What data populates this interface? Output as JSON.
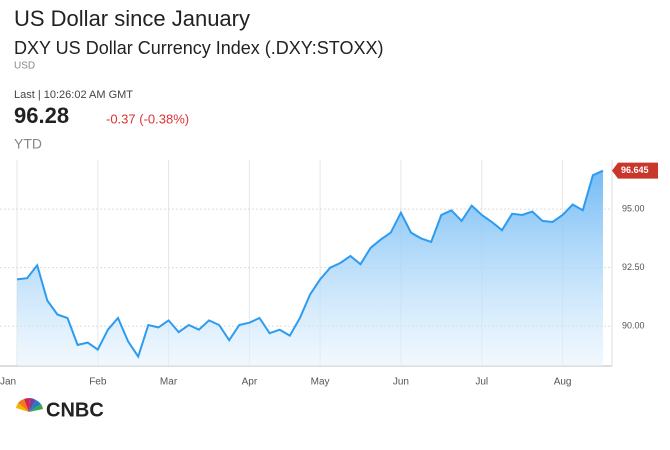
{
  "chart_data": {
    "type": "line",
    "title": "US Dollar since January",
    "subtitle": "DXY US Dollar Currency Index (.DXY:STOXX)",
    "currency": "USD",
    "last_time": "Last | 10:26:02 AM GMT",
    "last_price": "96.28",
    "change": "-0.37 (-0.38%)",
    "period": "YTD",
    "logo": "CNBC",
    "categories": [
      "Jan",
      null,
      null,
      null,
      null,
      null,
      null,
      null,
      "Feb",
      null,
      null,
      null,
      null,
      null,
      null,
      "Mar",
      null,
      null,
      null,
      null,
      null,
      null,
      null,
      "Apr",
      null,
      null,
      null,
      null,
      null,
      null,
      "May",
      null,
      null,
      null,
      null,
      null,
      null,
      null,
      "Jun",
      null,
      null,
      null,
      null,
      null,
      null,
      null,
      "Jul",
      null,
      null,
      null,
      null,
      null,
      null,
      null,
      "Aug",
      null,
      null,
      null,
      null
    ],
    "series": [
      {
        "name": "DXY",
        "color": "#2d9cf0",
        "values": [
          92.0,
          92.05,
          92.6,
          91.1,
          90.5,
          90.35,
          89.2,
          89.3,
          89.0,
          89.85,
          90.35,
          89.35,
          88.7,
          90.05,
          89.95,
          90.25,
          89.75,
          90.05,
          89.85,
          90.25,
          90.05,
          89.4,
          90.05,
          90.15,
          90.35,
          89.7,
          89.85,
          89.6,
          90.35,
          91.35,
          92.0,
          92.5,
          92.7,
          93.0,
          92.65,
          93.35,
          93.7,
          94.0,
          94.85,
          94.0,
          93.75,
          93.6,
          94.75,
          94.95,
          94.5,
          95.15,
          94.75,
          94.45,
          94.1,
          94.8,
          94.75,
          94.9,
          94.5,
          94.45,
          94.75,
          95.2,
          94.95,
          96.45,
          96.645
        ]
      }
    ],
    "last_color": "#c9362a",
    "ylim": [
      88.3,
      97.1
    ],
    "yticks": [
      {
        "value": 90,
        "label": "90.00"
      },
      {
        "value": 92.5,
        "label": "92.50"
      },
      {
        "value": 95,
        "label": "95.00"
      }
    ],
    "grid": true
  }
}
